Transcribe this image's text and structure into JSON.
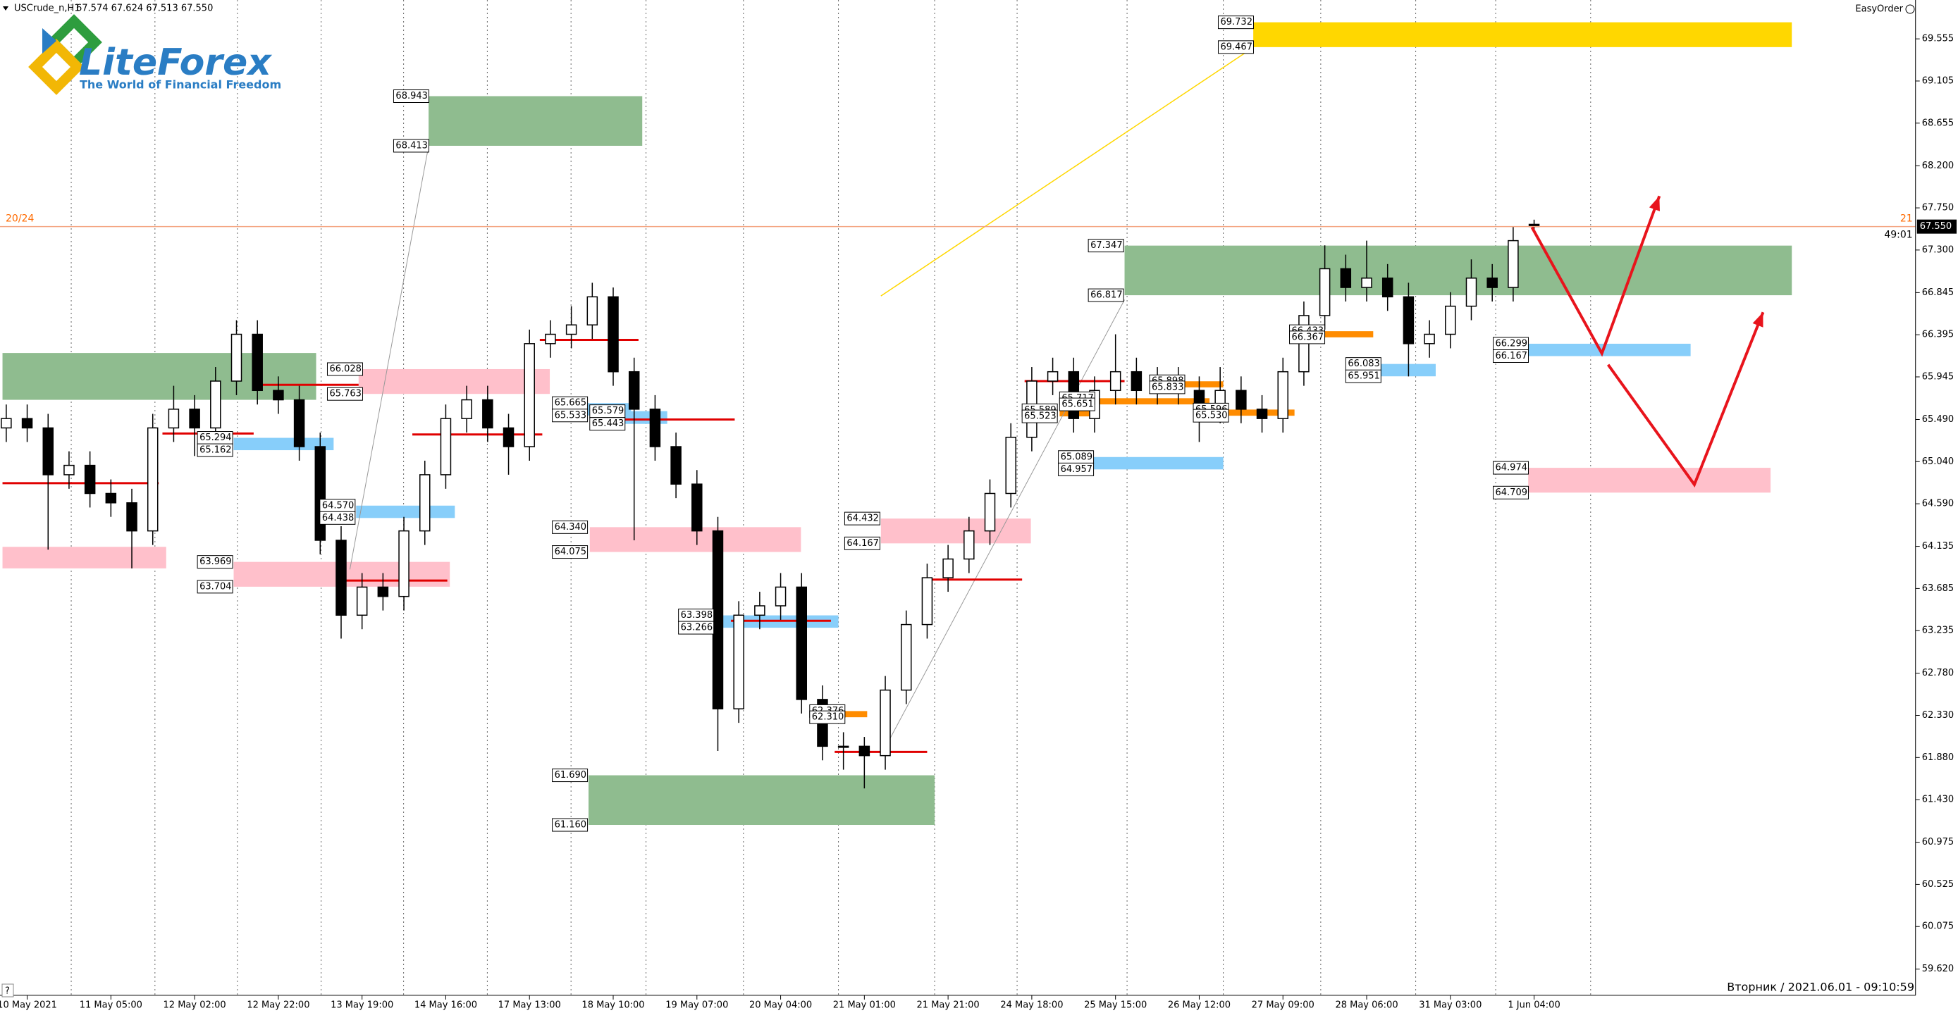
{
  "header": {
    "symbol": "USCrude_n,H1",
    "ohlc_text": "67.574 67.624 67.513 67.550",
    "easy_order": "EasyOrder"
  },
  "logo": {
    "name": "LiteForex",
    "tagline": "The World of Financial Freedom"
  },
  "status": "Вторник / 2021.06.01 - 09:10:59",
  "help": "?",
  "chart_data": {
    "type": "candlestick",
    "categories": [
      null,
      "10 May 2021",
      null,
      null,
      null,
      "11 May 05:00",
      null,
      null,
      null,
      "12 May 02:00",
      null,
      null,
      null,
      "12 May 22:00",
      null,
      null,
      null,
      "13 May 19:00",
      null,
      null,
      null,
      "14 May 16:00",
      null,
      null,
      null,
      "17 May 13:00",
      null,
      null,
      null,
      "18 May 10:00",
      null,
      null,
      null,
      "19 May 07:00",
      null,
      null,
      null,
      "20 May 04:00",
      null,
      null,
      null,
      "21 May 01:00",
      null,
      null,
      null,
      "21 May 21:00",
      null,
      null,
      null,
      "24 May 18:00",
      null,
      null,
      null,
      "25 May 15:00",
      null,
      null,
      null,
      "26 May 12:00",
      null,
      null,
      null,
      "27 May 09:00",
      null,
      null,
      null,
      "28 May 06:00",
      null,
      null,
      null,
      "31 May 03:00",
      null,
      null,
      null,
      "1 Jun 04:00"
    ],
    "open": [
      65.4,
      65.5,
      65.4,
      64.9,
      65.0,
      64.7,
      64.6,
      64.3,
      65.4,
      65.6,
      65.4,
      65.9,
      66.4,
      65.8,
      65.7,
      65.2,
      64.2,
      63.4,
      63.7,
      63.6,
      64.3,
      64.9,
      65.5,
      65.7,
      65.4,
      65.2,
      66.3,
      66.4,
      66.5,
      66.8,
      66.0,
      65.6,
      65.2,
      64.8,
      64.3,
      62.4,
      63.4,
      63.5,
      63.7,
      62.5,
      62.0,
      62.0,
      61.9,
      62.6,
      63.3,
      63.8,
      64.0,
      64.3,
      64.7,
      65.3,
      65.9,
      66.0,
      65.5,
      65.8,
      66.0,
      65.8,
      65.9,
      65.8,
      65.6,
      65.8,
      65.6,
      65.5,
      66.0,
      66.6,
      67.1,
      66.9,
      67.0,
      66.8,
      66.3,
      66.4,
      66.7,
      67.0,
      66.9,
      67.574
    ],
    "high": [
      65.65,
      65.65,
      65.55,
      65.15,
      65.15,
      64.85,
      64.75,
      65.55,
      65.85,
      65.75,
      66.05,
      66.55,
      66.55,
      65.95,
      65.85,
      65.35,
      64.35,
      63.85,
      63.85,
      64.45,
      65.05,
      65.65,
      65.85,
      65.85,
      65.55,
      66.45,
      66.55,
      66.7,
      66.95,
      66.9,
      66.15,
      65.75,
      65.35,
      64.95,
      64.45,
      63.55,
      63.65,
      63.85,
      63.85,
      62.65,
      62.15,
      62.1,
      62.75,
      63.45,
      63.95,
      64.15,
      64.45,
      64.85,
      65.45,
      66.05,
      66.15,
      66.15,
      65.95,
      66.4,
      66.15,
      66.05,
      66.05,
      65.95,
      66.05,
      65.95,
      65.75,
      66.15,
      66.75,
      67.35,
      67.25,
      67.4,
      67.15,
      66.95,
      66.55,
      66.85,
      67.2,
      67.15,
      67.55,
      67.624
    ],
    "low": [
      65.25,
      65.25,
      64.1,
      64.75,
      64.55,
      64.45,
      63.9,
      64.15,
      65.25,
      65.1,
      65.25,
      65.75,
      65.65,
      65.55,
      65.05,
      64.05,
      63.15,
      63.25,
      63.45,
      63.45,
      64.15,
      64.75,
      65.35,
      65.25,
      64.9,
      65.05,
      66.15,
      66.25,
      66.35,
      65.85,
      64.2,
      65.05,
      64.65,
      64.15,
      61.95,
      62.25,
      63.25,
      63.35,
      62.35,
      61.85,
      61.75,
      61.55,
      61.75,
      62.45,
      63.15,
      63.65,
      63.85,
      64.15,
      64.55,
      65.15,
      65.75,
      65.35,
      65.35,
      65.65,
      65.65,
      65.65,
      65.65,
      65.25,
      65.45,
      65.45,
      65.35,
      65.35,
      65.85,
      66.45,
      66.75,
      66.75,
      66.65,
      65.95,
      66.15,
      66.25,
      66.55,
      66.75,
      66.75,
      67.513
    ],
    "close": [
      65.5,
      65.4,
      64.9,
      65.0,
      64.7,
      64.6,
      64.3,
      65.4,
      65.6,
      65.4,
      65.9,
      66.4,
      65.8,
      65.7,
      65.2,
      64.2,
      63.4,
      63.7,
      63.6,
      64.3,
      64.9,
      65.5,
      65.7,
      65.4,
      65.2,
      66.3,
      66.4,
      66.5,
      66.8,
      66.0,
      65.6,
      65.2,
      64.8,
      64.3,
      62.4,
      63.4,
      63.5,
      63.7,
      62.5,
      62.0,
      62.0,
      61.9,
      62.6,
      63.3,
      63.8,
      64.0,
      64.3,
      64.7,
      65.3,
      65.9,
      66.0,
      65.5,
      65.8,
      66.0,
      65.8,
      65.9,
      65.8,
      65.6,
      65.8,
      65.6,
      65.5,
      66.0,
      66.6,
      67.1,
      66.9,
      67.0,
      66.8,
      66.3,
      66.4,
      66.7,
      67.0,
      66.9,
      67.4,
      67.55
    ],
    "up_color": "#ffffff",
    "down_color": "#000000",
    "ylim": [
      59.34,
      69.97
    ],
    "yticks": [
      69.555,
      69.105,
      68.655,
      {
        "value": 68.2,
        "label": "68.200"
      },
      {
        "value": 67.75,
        "label": "67.750"
      },
      {
        "value": 67.3,
        "label": "67.300"
      },
      66.845,
      66.395,
      65.945,
      {
        "value": 65.49,
        "label": "65.490"
      },
      {
        "value": 65.04,
        "label": "65.040"
      },
      {
        "value": 64.59,
        "label": "64.590"
      },
      64.135,
      63.685,
      63.235,
      {
        "value": 62.78,
        "label": "62.780"
      },
      {
        "value": 62.33,
        "label": "62.330"
      },
      {
        "value": 61.88,
        "label": "61.880"
      },
      {
        "value": 61.43,
        "label": "61.430"
      },
      60.975,
      60.525,
      60.075,
      {
        "value": 59.62,
        "label": "59.620"
      }
    ],
    "zones": [
      {
        "top": 69.732,
        "bottom": 69.467,
        "color": "#ffd700"
      },
      {
        "top": 68.943,
        "bottom": 68.413,
        "color": "#8fbc8f"
      },
      {
        "top": 66.2,
        "bottom": 65.7,
        "color": "#8fbc8f",
        "labeled": false
      },
      {
        "top": 64.13,
        "bottom": 63.9,
        "color": "#ffc0cb",
        "labeled": false
      },
      {
        "top": 66.028,
        "bottom": 65.763,
        "color": "#ffc0cb"
      },
      {
        "top": 63.969,
        "bottom": 63.704,
        "color": "#ffc0cb"
      },
      {
        "top": 65.294,
        "bottom": 65.162,
        "color": "#87cefa"
      },
      {
        "top": 64.57,
        "top_label": "64.570",
        "bottom": 64.438,
        "color": "#87cefa"
      },
      {
        "top": 65.665,
        "bottom": 65.533,
        "color": "#87cefa"
      },
      {
        "top": 65.579,
        "bottom": 65.443,
        "color": "#87cefa"
      },
      {
        "top": 64.34,
        "top_label": "64.340",
        "bottom": 64.075,
        "color": "#ffc0cb"
      },
      {
        "top": 63.398,
        "bottom": 63.266,
        "color": "#87cefa"
      },
      {
        "top": 64.432,
        "bottom": 64.167,
        "color": "#ffc0cb"
      },
      {
        "top": 62.376,
        "bottom": 62.31,
        "bottom_label": "62.310",
        "color": "#ff8c00"
      },
      {
        "top": 61.69,
        "top_label": "61.690",
        "bottom": 61.16,
        "bottom_label": "61.160",
        "color": "#8fbc8f"
      },
      {
        "top": 67.347,
        "bottom": 66.817,
        "color": "#8fbc8f"
      },
      {
        "top": 65.089,
        "bottom": 64.957,
        "color": "#87cefa"
      },
      {
        "top": 65.589,
        "bottom": 65.523,
        "color": "#ff8c00"
      },
      {
        "top": 65.596,
        "bottom": 65.53,
        "bottom_label": "65.530",
        "color": "#ff8c00"
      },
      {
        "top": 65.717,
        "bottom": 65.651,
        "color": "#ff8c00"
      },
      {
        "top": 65.898,
        "bottom": 65.833,
        "color": "#ff8c00"
      },
      {
        "top": 66.433,
        "bottom": 66.367,
        "color": "#ff8c00"
      },
      {
        "top": 66.083,
        "bottom": 65.951,
        "color": "#87cefa"
      },
      {
        "top": 66.299,
        "bottom": 66.167,
        "color": "#87cefa"
      },
      {
        "top": 64.974,
        "bottom": 64.709,
        "color": "#ffc0cb"
      }
    ],
    "levels": [
      64.81,
      65.34,
      65.86,
      63.77,
      65.33,
      66.34,
      65.49,
      63.34,
      61.94,
      63.78,
      65.9
    ],
    "level_color": "#e00000",
    "last_price": {
      "value": 67.55,
      "label": "67.550"
    },
    "price_line_color": "#f4a582",
    "left_marker": "20/24",
    "right_marker": "21",
    "timer": "49:01"
  }
}
